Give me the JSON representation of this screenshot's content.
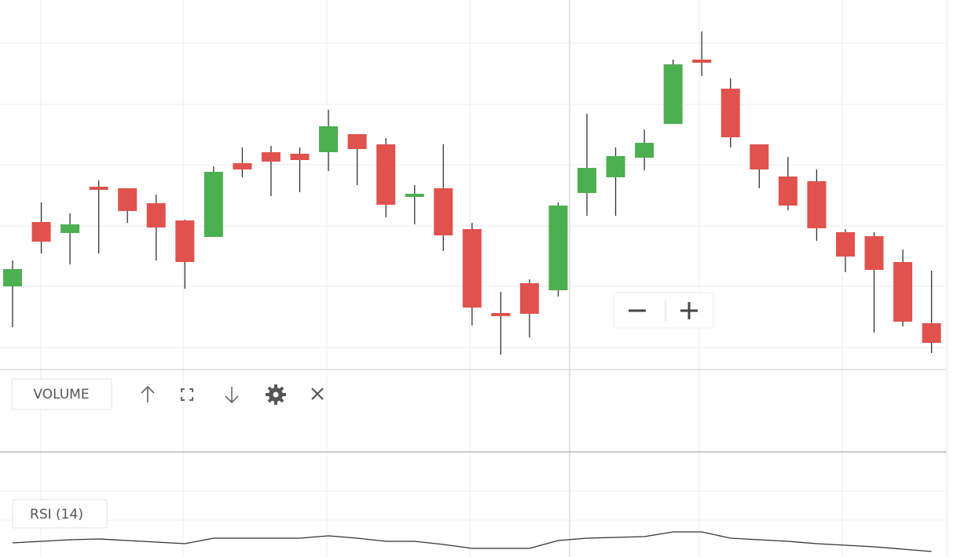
{
  "chart_data": [
    {
      "type": "candlestick",
      "up_color": "#4caf50",
      "down_color": "#e0524d",
      "ylim": [
        30,
        500
      ],
      "open": [
        135,
        217,
        203,
        262,
        260,
        241,
        219,
        198,
        292,
        306,
        304,
        306,
        329,
        316,
        249,
        260,
        208,
        101,
        139,
        130,
        254,
        274,
        299,
        342,
        424,
        387,
        316,
        275,
        269,
        204,
        199,
        166,
        88
      ],
      "high": [
        168,
        242,
        228,
        270,
        260,
        252,
        220,
        288,
        312,
        314,
        312,
        360,
        329,
        324,
        264,
        316,
        216,
        128,
        144,
        242,
        355,
        312,
        335,
        424,
        460,
        400,
        316,
        300,
        284,
        208,
        204,
        182,
        155
      ],
      "low": [
        83,
        177,
        163,
        177,
        216,
        168,
        132,
        198,
        274,
        250,
        255,
        282,
        264,
        223,
        214,
        180,
        85,
        48,
        70,
        122,
        225,
        225,
        283,
        342,
        403,
        312,
        260,
        232,
        193,
        153,
        76,
        84,
        50
      ],
      "close": [
        157,
        192,
        214,
        258,
        231,
        210,
        166,
        281,
        284,
        294,
        296,
        339,
        310,
        239,
        253,
        200,
        108,
        97,
        100,
        238,
        286,
        301,
        318,
        418,
        420,
        325,
        284,
        238,
        209,
        173,
        156,
        90,
        63
      ]
    },
    {
      "type": "line",
      "title": "RSI (14)",
      "color": "#333333",
      "ylim": [
        0,
        40
      ],
      "values": [
        18,
        20,
        22,
        23,
        21,
        19,
        17,
        24,
        24,
        24,
        24,
        27,
        24,
        20,
        20,
        16,
        11,
        11,
        11,
        21,
        24,
        25,
        26,
        32,
        32,
        24,
        22,
        20,
        17,
        15,
        13,
        10,
        7
      ]
    }
  ],
  "volume_pane": {
    "label": "VOLUME"
  }
}
